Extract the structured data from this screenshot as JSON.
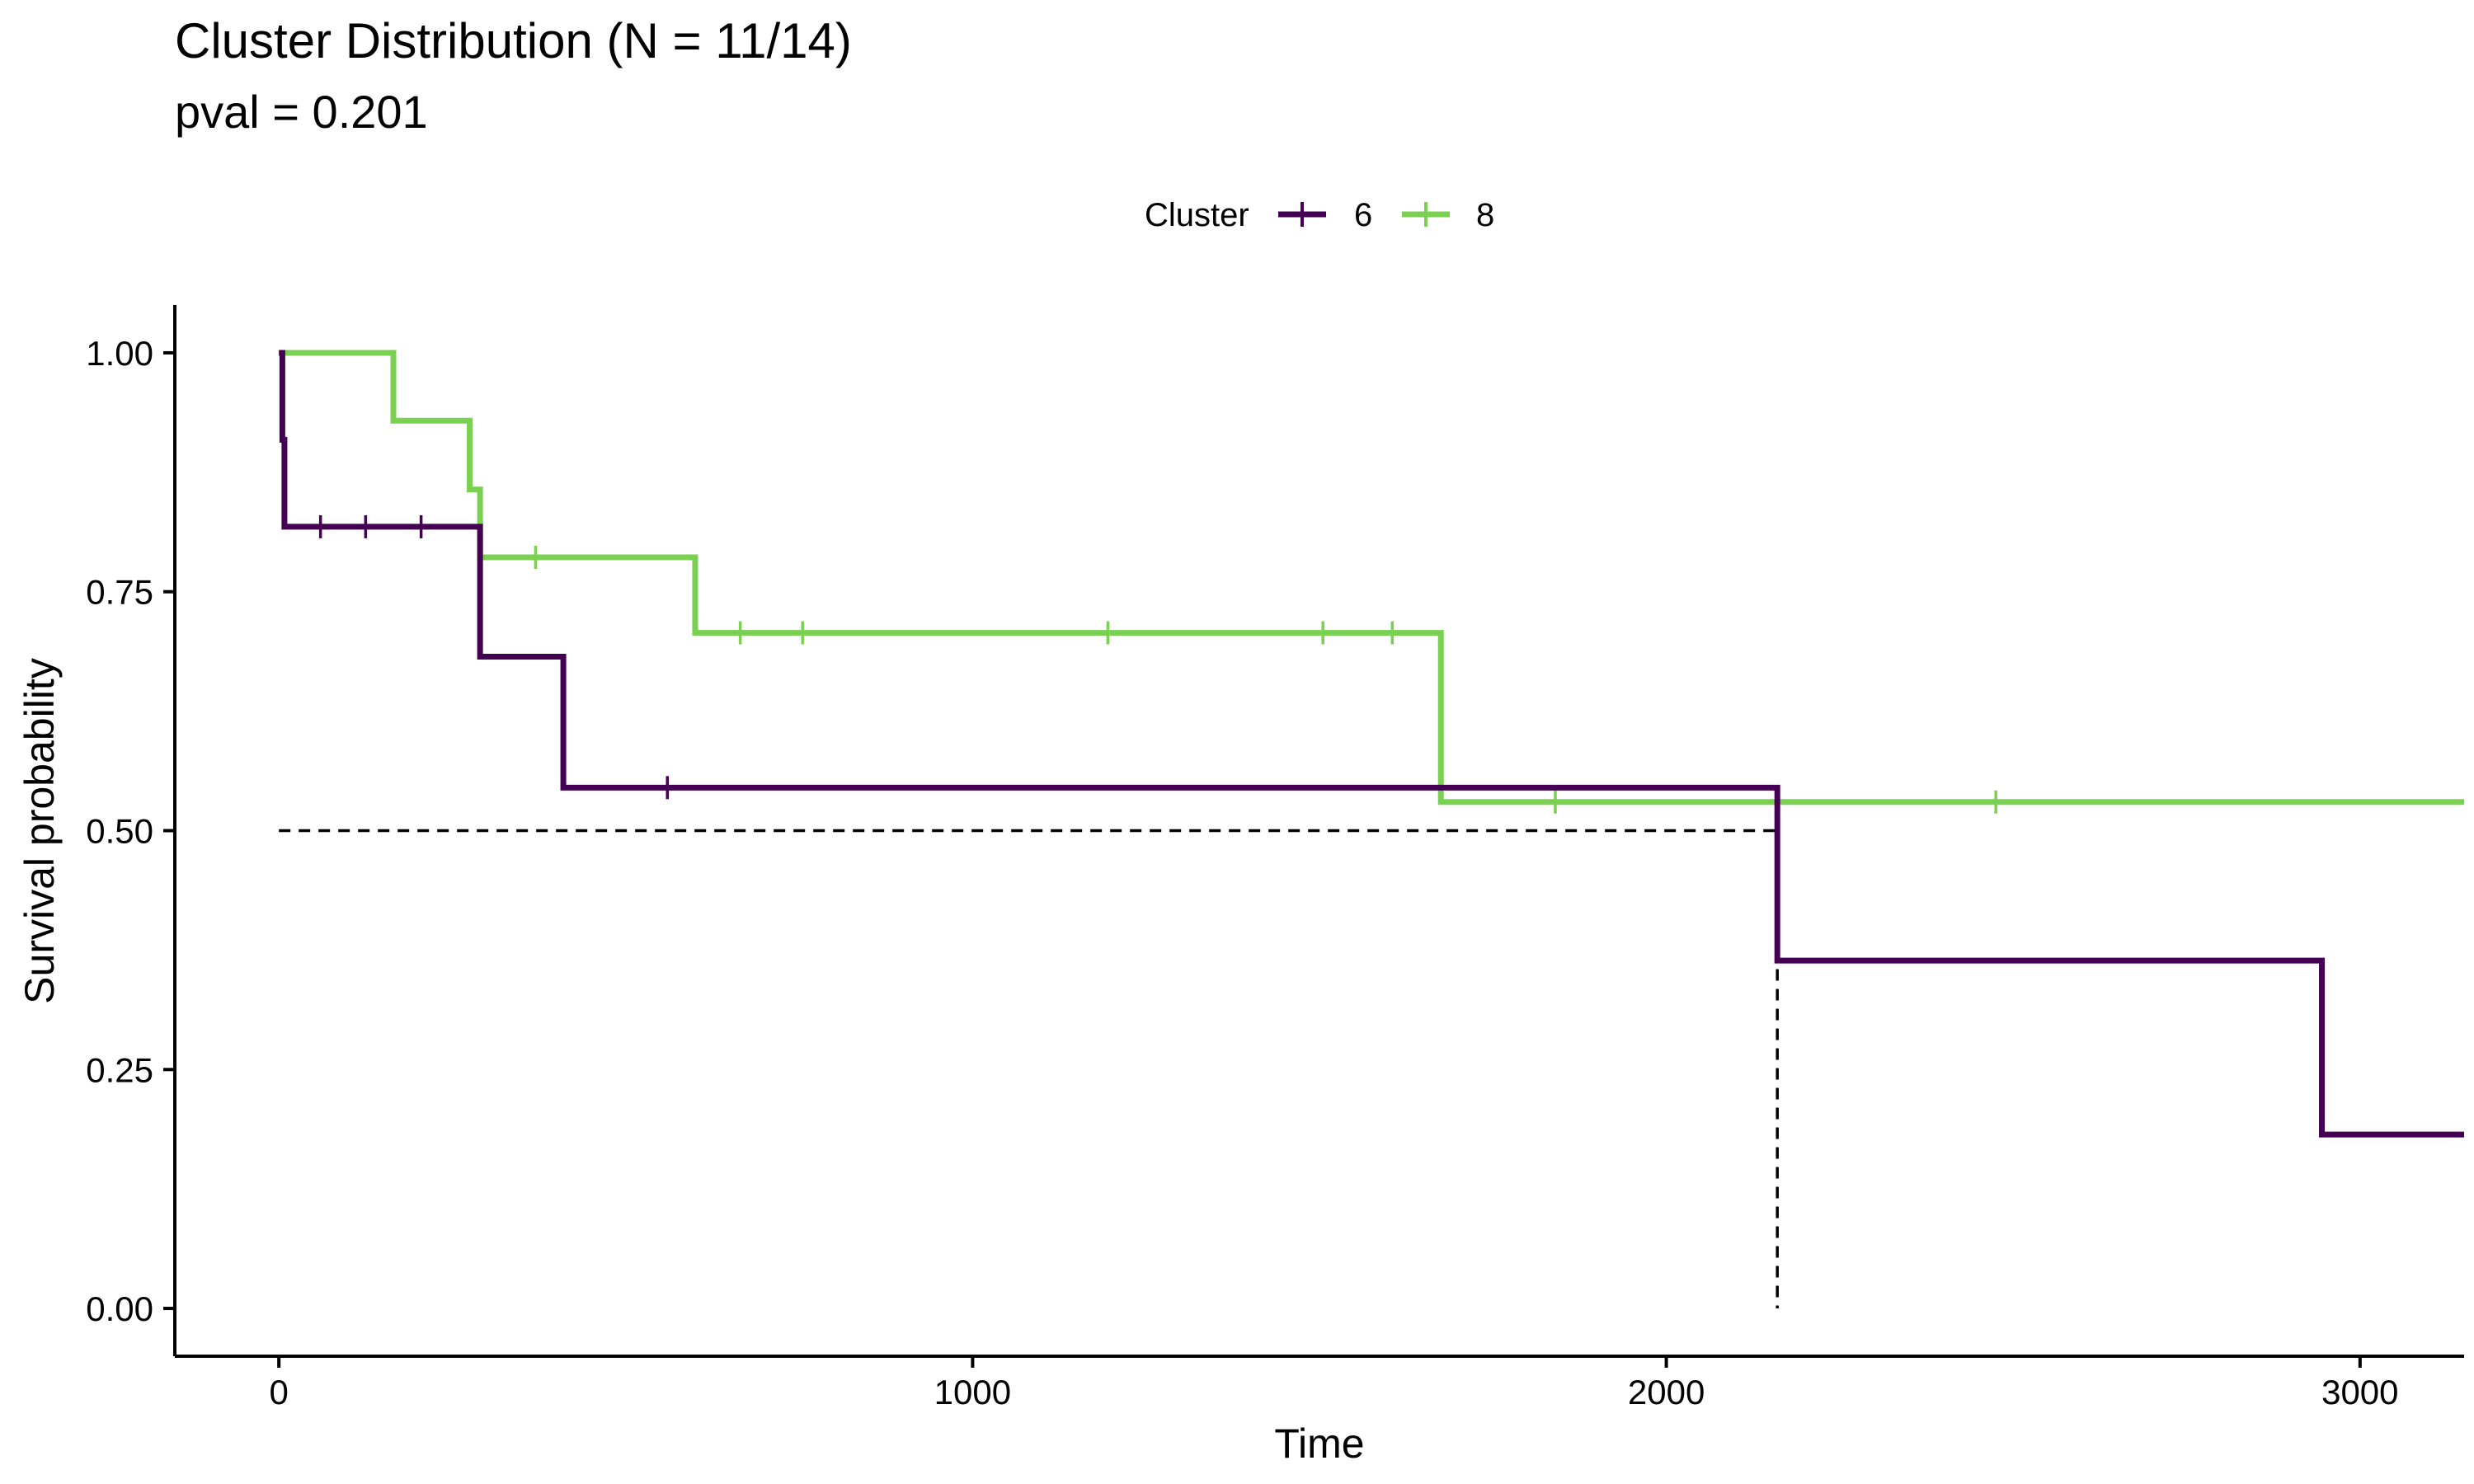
{
  "chart_data": {
    "type": "line",
    "subtype": "kaplan-meier-step",
    "title": "Cluster Distribution (N = 11/14)",
    "subtitle": "pval = 0.201",
    "xlabel": "Time",
    "ylabel": "Survival probability",
    "xlim": [
      -150,
      3150
    ],
    "ylim": [
      -0.05,
      1.05
    ],
    "x_ticks": [
      0,
      1000,
      2000,
      3000
    ],
    "x_tick_labels": [
      "0",
      "1000",
      "2000",
      "3000"
    ],
    "y_ticks": [
      0,
      0.25,
      0.5,
      0.75,
      1
    ],
    "y_tick_labels": [
      "0.00",
      "0.25",
      "0.50",
      "0.75",
      "1.00"
    ],
    "legend": {
      "title": "Cluster",
      "position": "top",
      "entries": [
        "6",
        "8"
      ]
    },
    "median_line": {
      "y": 0.5,
      "x_from": 0,
      "x_to": 2160
    },
    "series": [
      {
        "name": "6",
        "color": "#440154",
        "steps": [
          [
            0,
            1.0
          ],
          [
            5,
            0.909
          ],
          [
            8,
            0.818
          ],
          [
            290,
            0.682
          ],
          [
            410,
            0.545
          ],
          [
            2160,
            0.364
          ],
          [
            2945,
            0.182
          ],
          [
            3150,
            0.182
          ]
        ],
        "censors": [
          [
            60,
            0.818
          ],
          [
            125,
            0.818
          ],
          [
            205,
            0.818
          ],
          [
            560,
            0.545
          ]
        ]
      },
      {
        "name": "8",
        "color": "#7AD151",
        "steps": [
          [
            0,
            1.0
          ],
          [
            165,
            0.929
          ],
          [
            275,
            0.857
          ],
          [
            290,
            0.786
          ],
          [
            600,
            0.707
          ],
          [
            1675,
            0.53
          ],
          [
            3150,
            0.53
          ]
        ],
        "censors": [
          [
            370,
            0.786
          ],
          [
            665,
            0.707
          ],
          [
            755,
            0.707
          ],
          [
            1195,
            0.707
          ],
          [
            1505,
            0.707
          ],
          [
            1605,
            0.707
          ],
          [
            1840,
            0.53
          ],
          [
            2475,
            0.53
          ]
        ]
      }
    ]
  }
}
